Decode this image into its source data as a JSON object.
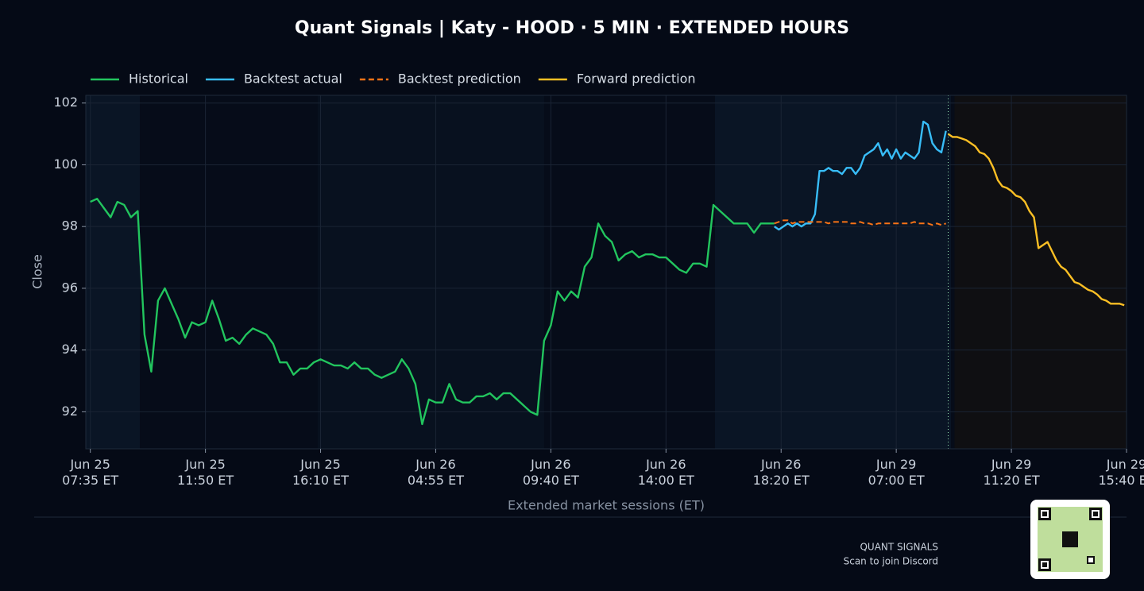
{
  "chart_data": {
    "type": "line",
    "title": "Quant Signals | Katy - HOOD · 5 MIN · EXTENDED HOURS",
    "x_label": "Extended market sessions (ET)",
    "y_label": "Close",
    "xlim": [
      -2,
      459
    ],
    "ylim": [
      90.8,
      102.25
    ],
    "yticks": [
      92,
      94,
      96,
      98,
      100,
      102
    ],
    "xticks": [
      {
        "value": 0,
        "label": "Jun 25\n07:35 ET"
      },
      {
        "value": 51,
        "label": "Jun 25\n11:50 ET"
      },
      {
        "value": 102,
        "label": "Jun 25\n16:10 ET"
      },
      {
        "value": 153,
        "label": "Jun 26\n04:55 ET"
      },
      {
        "value": 204,
        "label": "Jun 26\n09:40 ET"
      },
      {
        "value": 255,
        "label": "Jun 26\n14:00 ET"
      },
      {
        "value": 306,
        "label": "Jun 26\n18:20 ET"
      },
      {
        "value": 357,
        "label": "Jun 29\n07:00 ET"
      },
      {
        "value": 408,
        "label": "Jun 29\n11:20 ET"
      },
      {
        "value": 459,
        "label": "Jun 29\n15:40 ET"
      }
    ],
    "grid": true,
    "legend": "top-left",
    "series": [
      {
        "name": "Historical",
        "color": "#22c55e",
        "style": "solid",
        "x": [
          0,
          3,
          6,
          9,
          12,
          15,
          18,
          21,
          24,
          27,
          30,
          33,
          36,
          39,
          42,
          45,
          48,
          51,
          54,
          57,
          60,
          63,
          66,
          69,
          72,
          75,
          78,
          81,
          84,
          87,
          90,
          93,
          96,
          99,
          102,
          105,
          108,
          111,
          114,
          117,
          120,
          123,
          126,
          129,
          132,
          135,
          138,
          141,
          144,
          147,
          150,
          153,
          156,
          159,
          162,
          165,
          168,
          171,
          174,
          177,
          180,
          183,
          186,
          189,
          192,
          195,
          198,
          201,
          204,
          207,
          210,
          213,
          216,
          219,
          222,
          225,
          228,
          231,
          234,
          237,
          240,
          243,
          246,
          249,
          252,
          255,
          258,
          261,
          264,
          267,
          270,
          273,
          276,
          279,
          282,
          285,
          288,
          291,
          294,
          297,
          300,
          303
        ],
        "values": [
          98.8,
          98.9,
          98.6,
          98.3,
          98.8,
          98.7,
          98.3,
          98.5,
          94.5,
          93.3,
          95.6,
          96.0,
          95.5,
          95.0,
          94.4,
          94.9,
          94.8,
          94.9,
          95.6,
          95.0,
          94.3,
          94.4,
          94.2,
          94.5,
          94.7,
          94.6,
          94.5,
          94.2,
          93.6,
          93.6,
          93.2,
          93.4,
          93.4,
          93.6,
          93.7,
          93.6,
          93.5,
          93.5,
          93.4,
          93.6,
          93.4,
          93.4,
          93.2,
          93.1,
          93.2,
          93.3,
          93.7,
          93.4,
          92.9,
          91.6,
          92.4,
          92.3,
          92.3,
          92.9,
          92.4,
          92.3,
          92.3,
          92.5,
          92.5,
          92.6,
          92.4,
          92.6,
          92.6,
          92.4,
          92.2,
          92.0,
          91.9,
          94.3,
          94.8,
          95.9,
          95.6,
          95.9,
          95.7,
          96.7,
          97.0,
          98.1,
          97.7,
          97.5,
          96.9,
          97.1,
          97.2,
          97.0,
          97.1,
          97.1,
          97.0,
          97.0,
          96.8,
          96.6,
          96.5,
          96.8,
          96.8,
          96.7,
          98.7,
          98.5,
          98.3,
          98.1,
          98.1,
          98.1,
          97.8,
          98.1,
          98.1,
          98.1
        ]
      },
      {
        "name": "Backtest actual",
        "color": "#38bdf8",
        "style": "solid",
        "x": [
          303,
          305,
          307,
          309,
          311,
          313,
          315,
          317,
          319,
          321,
          323,
          325,
          327,
          329,
          331,
          333,
          335,
          337,
          339,
          341,
          343,
          345,
          347,
          349,
          351,
          353,
          355,
          357,
          359,
          361,
          363,
          365,
          367,
          369,
          371,
          373,
          375,
          377,
          379
        ],
        "values": [
          98.0,
          97.9,
          98.0,
          98.1,
          98.0,
          98.1,
          98.0,
          98.1,
          98.1,
          98.4,
          99.8,
          99.8,
          99.9,
          99.8,
          99.8,
          99.7,
          99.9,
          99.9,
          99.7,
          99.9,
          100.3,
          100.4,
          100.5,
          100.7,
          100.3,
          100.5,
          100.2,
          100.5,
          100.2,
          100.4,
          100.3,
          100.2,
          100.4,
          101.4,
          101.3,
          100.7,
          100.5,
          100.4,
          101.1
        ]
      },
      {
        "name": "Backtest prediction",
        "color": "#f97316",
        "style": "dashed",
        "x": [
          303,
          305,
          307,
          309,
          311,
          313,
          315,
          317,
          319,
          321,
          323,
          325,
          327,
          329,
          331,
          333,
          335,
          337,
          339,
          341,
          343,
          345,
          347,
          349,
          351,
          353,
          355,
          357,
          359,
          361,
          363,
          365,
          367,
          369,
          371,
          373,
          375,
          377,
          379
        ],
        "values": [
          98.1,
          98.15,
          98.2,
          98.2,
          98.1,
          98.15,
          98.15,
          98.15,
          98.15,
          98.15,
          98.15,
          98.15,
          98.1,
          98.15,
          98.15,
          98.15,
          98.15,
          98.1,
          98.1,
          98.15,
          98.1,
          98.1,
          98.05,
          98.1,
          98.1,
          98.1,
          98.1,
          98.1,
          98.1,
          98.1,
          98.1,
          98.15,
          98.1,
          98.1,
          98.1,
          98.05,
          98.1,
          98.05,
          98.1
        ]
      },
      {
        "name": "Forward prediction",
        "color": "#fbbf24",
        "style": "solid",
        "x": [
          380,
          382,
          384,
          386,
          388,
          390,
          392,
          394,
          396,
          398,
          400,
          402,
          404,
          406,
          408,
          410,
          412,
          414,
          416,
          418,
          420,
          422,
          424,
          426,
          428,
          430,
          432,
          434,
          436,
          438,
          440,
          442,
          444,
          446,
          448,
          450,
          452,
          454,
          456,
          458
        ],
        "values": [
          101.0,
          100.9,
          100.9,
          100.85,
          100.8,
          100.7,
          100.6,
          100.4,
          100.35,
          100.2,
          99.9,
          99.5,
          99.3,
          99.25,
          99.15,
          99.0,
          98.95,
          98.8,
          98.5,
          98.3,
          97.3,
          97.4,
          97.5,
          97.2,
          96.9,
          96.7,
          96.6,
          96.4,
          96.2,
          96.15,
          96.05,
          95.95,
          95.9,
          95.8,
          95.65,
          95.6,
          95.5,
          95.5,
          95.5,
          95.45
        ]
      }
    ]
  },
  "footer": {
    "brand": "QUANT SIGNALS",
    "caption": "Scan to join Discord"
  }
}
